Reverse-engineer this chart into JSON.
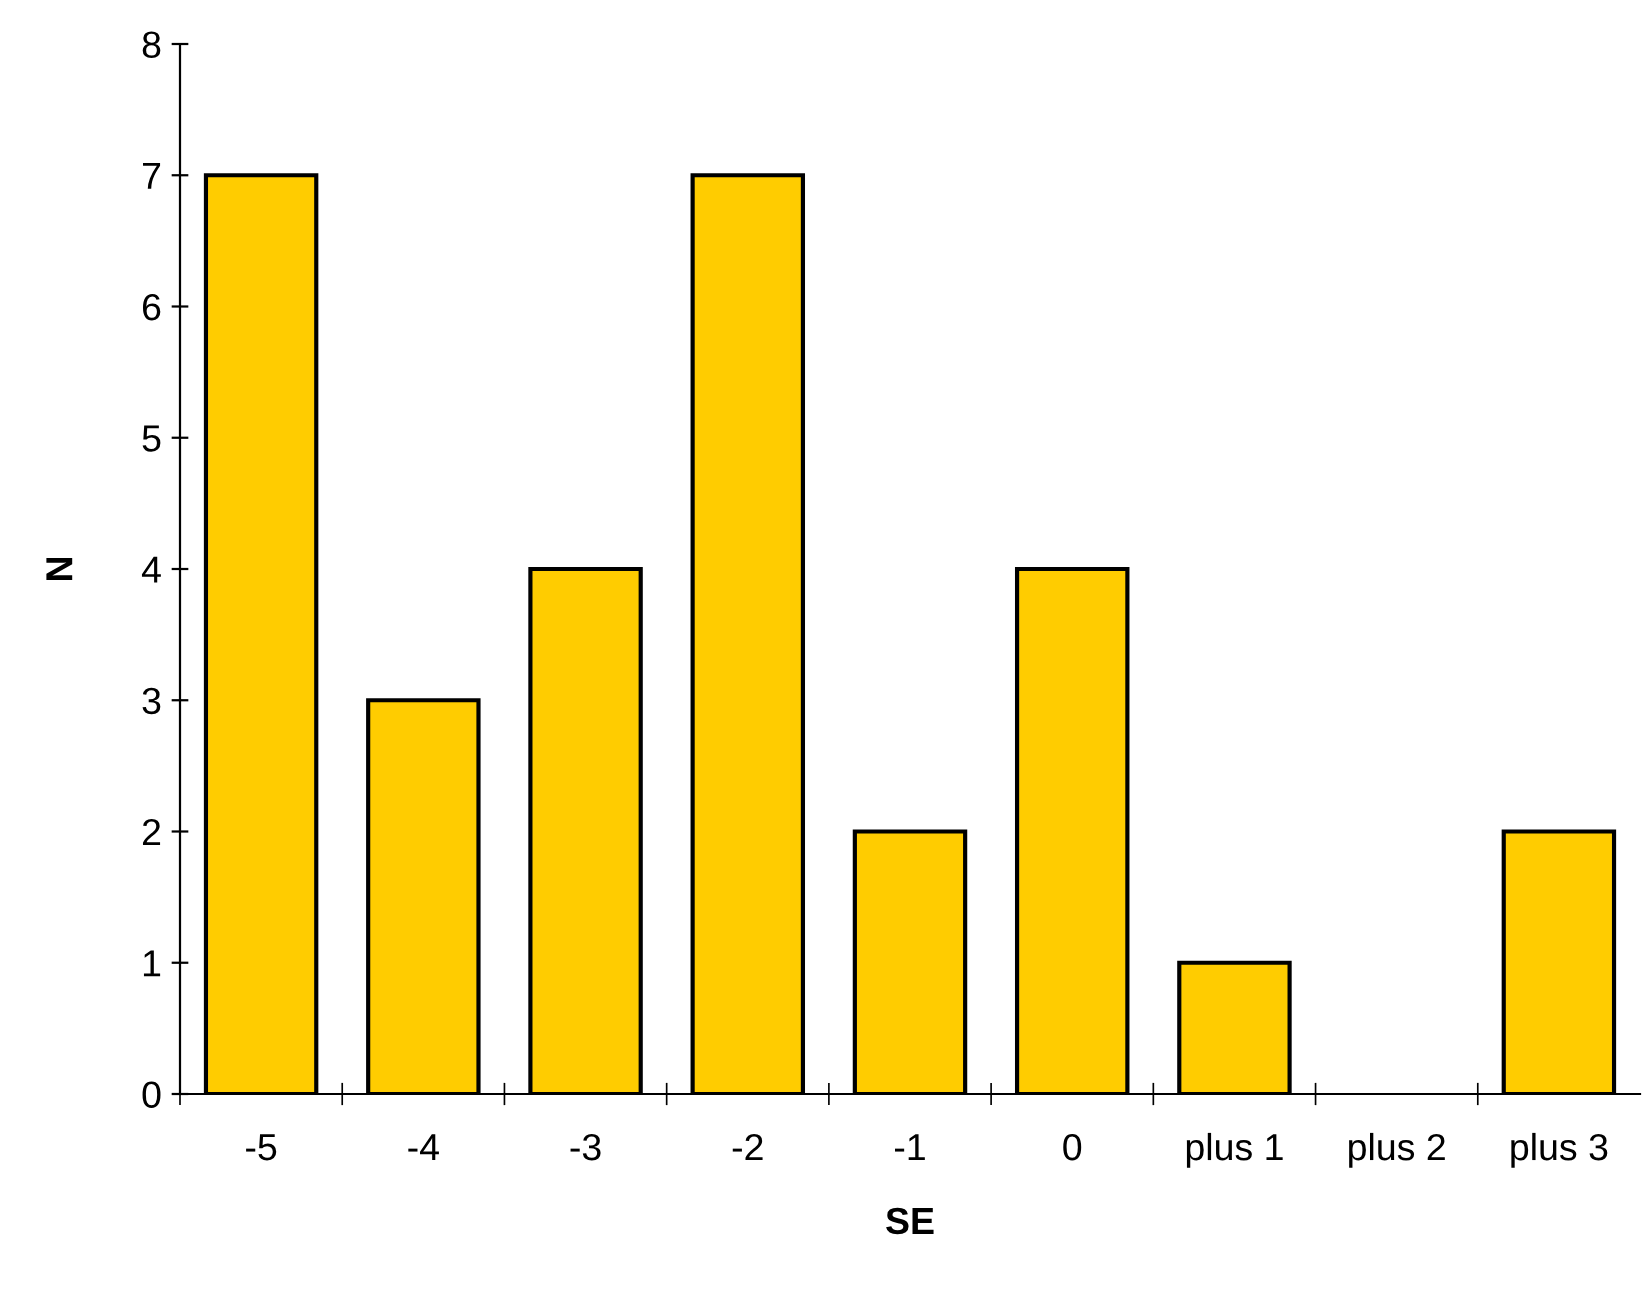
{
  "chart_data": {
    "type": "bar",
    "xlabel": "SE",
    "ylabel": "N",
    "categories": [
      "-5",
      "-4",
      "-3",
      "-2",
      "-1",
      "0",
      "plus 1",
      "plus 2",
      "plus 3"
    ],
    "values": [
      7,
      3,
      4,
      7,
      2,
      4,
      1,
      0,
      2
    ],
    "color": "#ffcc00",
    "ylim": [
      0,
      8
    ],
    "yticks": [
      0,
      1,
      2,
      3,
      4,
      5,
      6,
      7,
      8
    ],
    "grid": false,
    "legend": false
  }
}
